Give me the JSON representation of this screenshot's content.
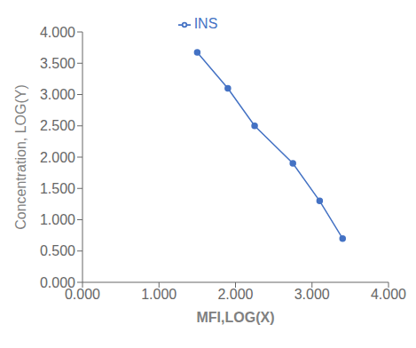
{
  "chart_data": {
    "type": "line",
    "x": [
      1.5,
      1.9,
      2.25,
      2.75,
      3.1,
      3.4
    ],
    "series": [
      {
        "name": "INS",
        "color": "#4472C4",
        "marker": "circle",
        "values": [
          3.675,
          3.1,
          2.5,
          1.9,
          1.3,
          0.7
        ]
      }
    ],
    "xlabel": "MFI,LOG(X)",
    "ylabel": "Concentration, LOG(Y)",
    "xlim": [
      0.0,
      4.0
    ],
    "ylim": [
      0.0,
      4.0
    ],
    "xticks": [
      {
        "value": 0,
        "label": "0.000"
      },
      {
        "value": 1,
        "label": "1.000"
      },
      {
        "value": 2,
        "label": "2.000"
      },
      {
        "value": 3,
        "label": "3.000"
      },
      {
        "value": 4,
        "label": "4.000"
      }
    ],
    "yticks": [
      {
        "value": 0,
        "label": "0.000"
      },
      {
        "value": 0.5,
        "label": "0.500"
      },
      {
        "value": 1,
        "label": "1.000"
      },
      {
        "value": 1.5,
        "label": "1.500"
      },
      {
        "value": 2,
        "label": "2.000"
      },
      {
        "value": 2.5,
        "label": "2.500"
      },
      {
        "value": 3,
        "label": "3.000"
      },
      {
        "value": 3.5,
        "label": "3.500"
      },
      {
        "value": 4,
        "label": "4.000"
      }
    ],
    "grid": false,
    "legend": "top"
  }
}
